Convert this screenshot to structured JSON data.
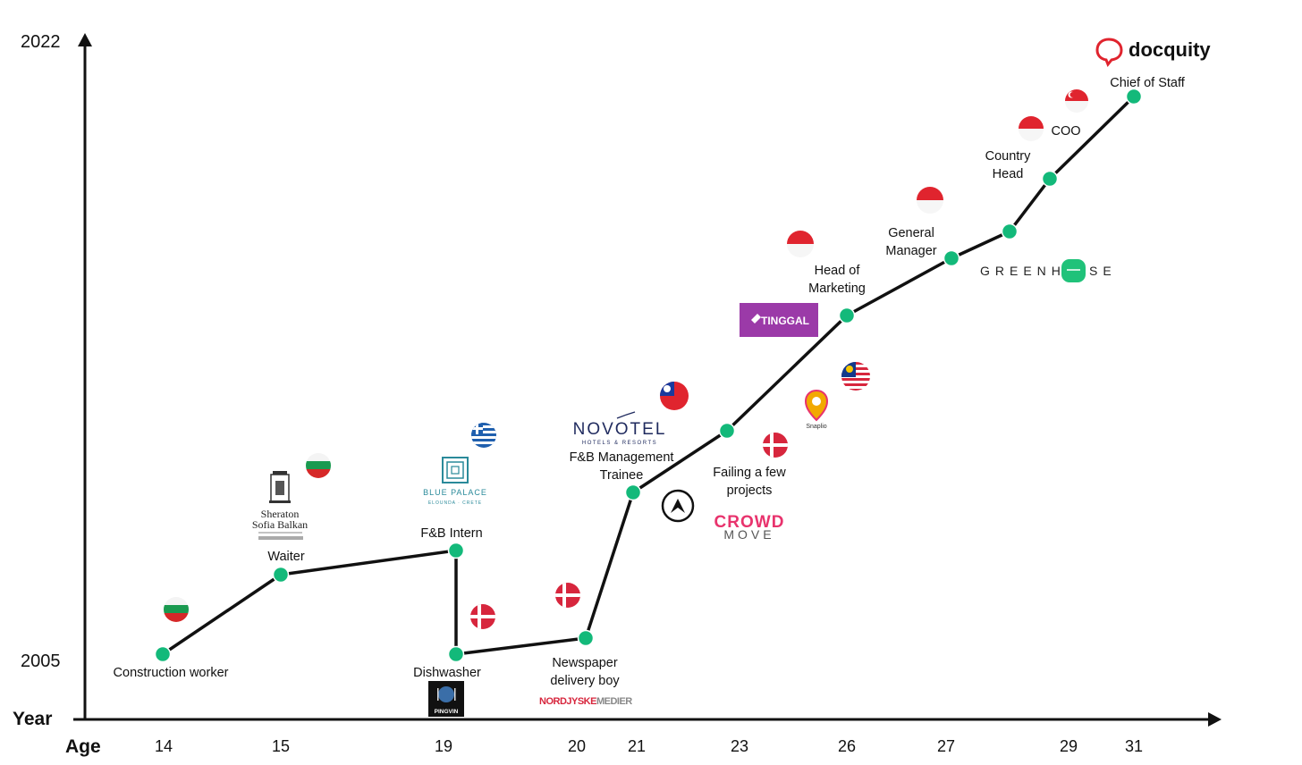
{
  "axes": {
    "y_label": "Year",
    "x_label": "Age",
    "y_top_label": "2022",
    "y_bottom_label": "2005",
    "x_ticks": [
      "14",
      "15",
      "19",
      "20",
      "21",
      "23",
      "26",
      "27",
      "29",
      "31"
    ]
  },
  "path_color": "#111111",
  "marker_color": "#13b97a",
  "milestones": [
    {
      "label_lines": [
        "Construction worker"
      ]
    },
    {
      "label_lines": [
        "Waiter"
      ]
    },
    {
      "label_lines": [
        "F&B Intern"
      ]
    },
    {
      "label_lines": [
        "Dishwasher"
      ]
    },
    {
      "label_lines": [
        "Newspaper",
        "delivery boy"
      ]
    },
    {
      "label_lines": [
        "F&B Management",
        "Trainee"
      ]
    },
    {
      "label_lines": [
        "Failing a few",
        "projects"
      ]
    },
    {
      "label_lines": [
        "Head of",
        "Marketing"
      ]
    },
    {
      "label_lines": [
        "General",
        "Manager"
      ]
    },
    {
      "label_lines": [
        "Country",
        "Head"
      ]
    },
    {
      "label_lines": [
        "COO"
      ]
    },
    {
      "label_lines": [
        "Chief of Staff"
      ]
    }
  ],
  "logos": {
    "sheraton": {
      "line1": "Sheraton",
      "line2": "Sofia Balkan"
    },
    "blue_palace": {
      "line1": "BLUE PALACE",
      "line2": "ELOUNDA · CRETE"
    },
    "pingvin": "PINGVIN",
    "nordjyske": {
      "part1": "NORDJYSKE",
      "part2": "MEDIER"
    },
    "novotel": {
      "line1": "NOVOTEL",
      "line2": "HOTELS & RESORTS"
    },
    "crowdmove": {
      "line1": "CROWD",
      "line2": "MOVE"
    },
    "snaplio": "Snaplio",
    "tinggal": "TINGGAL",
    "greenhouse": {
      "part1": "GREENH",
      "part2": "SE"
    },
    "docquity": "docquity"
  },
  "flags": [
    {
      "country": "bulgaria"
    },
    {
      "country": "bulgaria"
    },
    {
      "country": "greece"
    },
    {
      "country": "denmark"
    },
    {
      "country": "denmark"
    },
    {
      "country": "taiwan"
    },
    {
      "country": "denmark"
    },
    {
      "country": "malaysia"
    },
    {
      "country": "indonesia"
    },
    {
      "country": "indonesia"
    },
    {
      "country": "indonesia"
    },
    {
      "country": "singapore"
    }
  ]
}
